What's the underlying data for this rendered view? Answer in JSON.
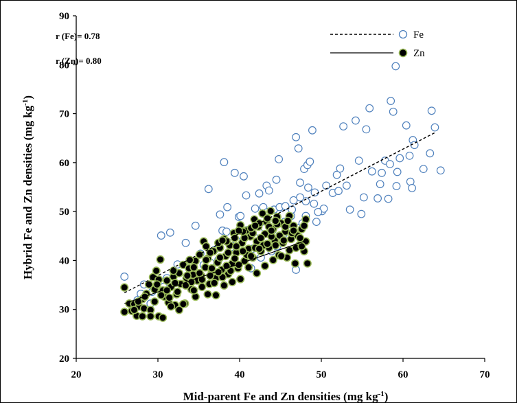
{
  "chart_data": {
    "type": "scatter",
    "xlabel": "Mid-parent Fe and Zn densities (mg kg",
    "xlabel_sup": "-1",
    "xlabel_end": ")",
    "ylabel": "Hybrid Fe and Zn densities (mg kg",
    "ylabel_sup": "-1",
    "ylabel_end": ")",
    "xlim": [
      20,
      70
    ],
    "ylim": [
      20,
      90
    ],
    "xticks": [
      20,
      30,
      40,
      50,
      60,
      70
    ],
    "yticks": [
      20,
      30,
      40,
      50,
      60,
      70,
      80,
      90
    ],
    "grid": false,
    "legend_position": "top-right",
    "annotations": [
      "r (Fe)= 0.78",
      "r (Zn)= 0.80"
    ],
    "colors": {
      "fe_marker_edge": "#4f81bd",
      "zn_marker_fill": "#000000",
      "zn_marker_edge": "#9bbb59"
    },
    "series": [
      {
        "name": "Fe",
        "marker": "open-circle",
        "trendline": {
          "style": "dashed",
          "x": [
            25.9,
            64.0
          ],
          "y": [
            33.4,
            66.2
          ]
        },
        "points": [
          [
            25.9,
            36.7
          ],
          [
            27.5,
            31.9
          ],
          [
            29.1,
            31.2
          ],
          [
            30.4,
            45.1
          ],
          [
            31.5,
            45.7
          ],
          [
            32.4,
            39.2
          ],
          [
            33.4,
            43.6
          ],
          [
            34.6,
            47.1
          ],
          [
            35.2,
            41.4
          ],
          [
            36.2,
            54.6
          ],
          [
            37.6,
            49.4
          ],
          [
            38.1,
            60.1
          ],
          [
            38.5,
            50.9
          ],
          [
            39.4,
            57.9
          ],
          [
            39.9,
            48.9
          ],
          [
            40.5,
            57.2
          ],
          [
            40.8,
            53.3
          ],
          [
            41.9,
            50.6
          ],
          [
            42.4,
            53.7
          ],
          [
            42.9,
            50.9
          ],
          [
            43.3,
            55.3
          ],
          [
            43.6,
            54.3
          ],
          [
            44.2,
            50.4
          ],
          [
            44.5,
            56.5
          ],
          [
            44.8,
            60.7
          ],
          [
            45.2,
            50.8
          ],
          [
            45.5,
            47.9
          ],
          [
            46.3,
            49.1
          ],
          [
            46.6,
            52.3
          ],
          [
            46.9,
            65.2
          ],
          [
            47.2,
            62.9
          ],
          [
            47.4,
            55.9
          ],
          [
            47.9,
            58.7
          ],
          [
            48.3,
            59.5
          ],
          [
            48.6,
            60.2
          ],
          [
            48.9,
            66.6
          ],
          [
            49.2,
            53.9
          ],
          [
            49.4,
            47.9
          ],
          [
            50.1,
            50.1
          ],
          [
            50.6,
            55.3
          ],
          [
            51.4,
            53.8
          ],
          [
            51.9,
            57.5
          ],
          [
            52.3,
            58.8
          ],
          [
            52.7,
            67.4
          ],
          [
            53.5,
            50.4
          ],
          [
            54.2,
            68.6
          ],
          [
            54.6,
            60.4
          ],
          [
            55.2,
            52.9
          ],
          [
            55.5,
            66.8
          ],
          [
            55.9,
            71.1
          ],
          [
            56.2,
            58.2
          ],
          [
            56.9,
            52.7
          ],
          [
            57.4,
            57.9
          ],
          [
            57.8,
            60.4
          ],
          [
            58.2,
            52.6
          ],
          [
            58.5,
            72.6
          ],
          [
            58.8,
            70.4
          ],
          [
            59.1,
            79.7
          ],
          [
            59.3,
            58.1
          ],
          [
            59.6,
            60.9
          ],
          [
            60.4,
            67.6
          ],
          [
            60.9,
            56.1
          ],
          [
            61.2,
            64.6
          ],
          [
            61.4,
            63.6
          ],
          [
            61.1,
            54.8
          ],
          [
            62.5,
            58.7
          ],
          [
            63.3,
            61.9
          ],
          [
            63.5,
            70.6
          ],
          [
            63.9,
            67.2
          ],
          [
            64.6,
            58.4
          ],
          [
            46.9,
            38.1
          ],
          [
            47.7,
            47.6
          ],
          [
            48.1,
            52.1
          ],
          [
            52.1,
            54.2
          ],
          [
            53.1,
            55.3
          ],
          [
            54.9,
            49.5
          ],
          [
            57.2,
            55.6
          ],
          [
            59.2,
            55.2
          ],
          [
            58.4,
            59.7
          ],
          [
            60.8,
            61.4
          ],
          [
            39.1,
            43.6
          ],
          [
            39.6,
            44.1
          ],
          [
            40.9,
            46.2
          ],
          [
            41.4,
            38.4
          ],
          [
            42.1,
            44.5
          ],
          [
            43.1,
            46.6
          ],
          [
            43.9,
            41.9
          ],
          [
            44.1,
            45.2
          ],
          [
            45.1,
            43.7
          ],
          [
            45.9,
            46.1
          ],
          [
            36.4,
            39.6
          ],
          [
            36.9,
            42.1
          ],
          [
            37.4,
            40.1
          ],
          [
            38.9,
            42.7
          ],
          [
            33.9,
            38.9
          ],
          [
            35.6,
            39.1
          ],
          [
            34.1,
            37.2
          ],
          [
            31.1,
            36.4
          ],
          [
            30.7,
            34.6
          ],
          [
            29.3,
            33.6
          ],
          [
            28.3,
            35.1
          ],
          [
            27.9,
            33.2
          ],
          [
            41.6,
            42.4
          ],
          [
            42.6,
            40.6
          ],
          [
            44.6,
            42.9
          ],
          [
            46.1,
            44.6
          ],
          [
            47.1,
            46.6
          ],
          [
            48.1,
            49.1
          ],
          [
            49.1,
            51.6
          ],
          [
            50.3,
            50.6
          ],
          [
            37.9,
            46.1
          ],
          [
            38.4,
            45.9
          ],
          [
            40.1,
            49.1
          ],
          [
            43.4,
            49.9
          ],
          [
            44.9,
            50.9
          ],
          [
            45.6,
            51.1
          ],
          [
            46.4,
            50.4
          ],
          [
            47.4,
            52.9
          ],
          [
            48.4,
            54.9
          ],
          [
            49.6,
            49.9
          ]
        ]
      },
      {
        "name": "Zn",
        "marker": "filled-circle",
        "trendline": {
          "style": "solid",
          "x": [
            25.9,
            48.4
          ],
          "y": [
            31.2,
            44.2
          ]
        },
        "points": [
          [
            25.9,
            34.5
          ],
          [
            25.9,
            29.5
          ],
          [
            26.5,
            31.2
          ],
          [
            26.8,
            29.7
          ],
          [
            27.1,
            31.1
          ],
          [
            27.4,
            28.7
          ],
          [
            27.7,
            30.6
          ],
          [
            28.1,
            32.1
          ],
          [
            28.3,
            30.2
          ],
          [
            28.6,
            33.2
          ],
          [
            28.9,
            35.1
          ],
          [
            29.1,
            29.9
          ],
          [
            29.4,
            36.6
          ],
          [
            29.6,
            34.1
          ],
          [
            29.8,
            37.9
          ],
          [
            30.1,
            28.6
          ],
          [
            30.3,
            40.2
          ],
          [
            30.6,
            33.9
          ],
          [
            30.8,
            32.6
          ],
          [
            31.1,
            35.9
          ],
          [
            31.3,
            31.4
          ],
          [
            31.6,
            34.6
          ],
          [
            31.9,
            36.7
          ],
          [
            32.1,
            30.9
          ],
          [
            32.3,
            33.1
          ],
          [
            32.6,
            37.4
          ],
          [
            32.8,
            35.2
          ],
          [
            33.1,
            39.1
          ],
          [
            33.3,
            31.2
          ],
          [
            33.5,
            36.4
          ],
          [
            33.8,
            38.4
          ],
          [
            34.1,
            34.1
          ],
          [
            34.3,
            37.1
          ],
          [
            34.6,
            39.9
          ],
          [
            34.8,
            35.9
          ],
          [
            35.1,
            41.2
          ],
          [
            35.3,
            36.9
          ],
          [
            35.6,
            43.9
          ],
          [
            35.8,
            38.6
          ],
          [
            36.1,
            40.4
          ],
          [
            36.3,
            35.2
          ],
          [
            36.6,
            37.9
          ],
          [
            36.8,
            41.9
          ],
          [
            37.1,
            36.4
          ],
          [
            37.3,
            39.6
          ],
          [
            37.6,
            42.6
          ],
          [
            37.8,
            38.1
          ],
          [
            38.1,
            44.4
          ],
          [
            38.3,
            40.9
          ],
          [
            38.6,
            37.2
          ],
          [
            38.8,
            43.1
          ],
          [
            39.1,
            39.4
          ],
          [
            39.3,
            45.6
          ],
          [
            39.6,
            41.6
          ],
          [
            39.8,
            38.4
          ],
          [
            40.1,
            47.2
          ],
          [
            40.3,
            43.6
          ],
          [
            40.6,
            39.9
          ],
          [
            40.8,
            46.1
          ],
          [
            41.1,
            42.4
          ],
          [
            41.3,
            44.9
          ],
          [
            41.6,
            40.6
          ],
          [
            41.8,
            48.4
          ],
          [
            42.1,
            43.9
          ],
          [
            42.3,
            46.9
          ],
          [
            42.6,
            41.9
          ],
          [
            42.8,
            49.6
          ],
          [
            43.1,
            45.4
          ],
          [
            43.3,
            47.9
          ],
          [
            43.6,
            42.6
          ],
          [
            43.8,
            50.1
          ],
          [
            44.1,
            46.4
          ],
          [
            44.3,
            44.1
          ],
          [
            44.6,
            48.9
          ],
          [
            44.8,
            41.1
          ],
          [
            45.1,
            47.6
          ],
          [
            45.3,
            43.6
          ],
          [
            45.6,
            45.9
          ],
          [
            45.8,
            40.6
          ],
          [
            46.1,
            49.1
          ],
          [
            46.3,
            44.4
          ],
          [
            46.6,
            47.1
          ],
          [
            46.8,
            39.4
          ],
          [
            47.1,
            45.1
          ],
          [
            47.3,
            43.1
          ],
          [
            47.6,
            46.4
          ],
          [
            47.9,
            41.9
          ],
          [
            48.1,
            43.9
          ],
          [
            48.3,
            39.4
          ],
          [
            48.1,
            48.4
          ],
          [
            28.1,
            28.6
          ],
          [
            29.1,
            28.6
          ],
          [
            30.6,
            28.3
          ],
          [
            31.6,
            30.6
          ],
          [
            32.6,
            29.9
          ],
          [
            33.1,
            31.1
          ],
          [
            34.6,
            32.6
          ],
          [
            36.1,
            33.1
          ],
          [
            37.1,
            32.9
          ],
          [
            38.1,
            34.9
          ],
          [
            39.1,
            35.6
          ],
          [
            40.1,
            36.2
          ],
          [
            41.1,
            38.6
          ],
          [
            42.1,
            37.4
          ],
          [
            43.1,
            38.9
          ],
          [
            44.1,
            40.1
          ],
          [
            45.1,
            40.9
          ],
          [
            46.1,
            42.1
          ],
          [
            46.9,
            42.6
          ],
          [
            47.6,
            42.9
          ],
          [
            30.1,
            36.1
          ],
          [
            31.1,
            33.9
          ],
          [
            32.1,
            35.4
          ],
          [
            33.6,
            36.9
          ],
          [
            34.1,
            35.6
          ],
          [
            35.1,
            37.4
          ],
          [
            36.6,
            38.4
          ],
          [
            37.6,
            40.6
          ],
          [
            38.6,
            41.6
          ],
          [
            39.6,
            42.9
          ],
          [
            40.6,
            44.6
          ],
          [
            41.6,
            45.6
          ],
          [
            42.6,
            44.6
          ],
          [
            43.6,
            46.9
          ],
          [
            44.6,
            47.4
          ],
          [
            45.6,
            46.9
          ],
          [
            35.4,
            34.6
          ],
          [
            36.9,
            35.4
          ],
          [
            37.9,
            36.6
          ],
          [
            38.9,
            37.9
          ],
          [
            39.9,
            39.1
          ],
          [
            40.9,
            41.1
          ],
          [
            41.9,
            42.6
          ],
          [
            42.9,
            43.1
          ],
          [
            43.9,
            44.9
          ],
          [
            44.9,
            45.1
          ],
          [
            34.4,
            38.6
          ],
          [
            35.9,
            40.1
          ],
          [
            36.4,
            41.6
          ],
          [
            37.4,
            43.6
          ],
          [
            38.4,
            43.9
          ],
          [
            39.4,
            44.6
          ],
          [
            40.4,
            45.9
          ],
          [
            41.4,
            46.6
          ],
          [
            42.4,
            47.6
          ],
          [
            43.4,
            48.6
          ],
          [
            44.4,
            48.1
          ],
          [
            27.1,
            29.9
          ],
          [
            27.6,
            31.6
          ],
          [
            28.4,
            32.6
          ],
          [
            29.6,
            31.6
          ],
          [
            30.4,
            32.9
          ],
          [
            31.4,
            32.4
          ],
          [
            32.4,
            33.6
          ],
          [
            33.4,
            34.9
          ],
          [
            34.4,
            33.9
          ],
          [
            35.4,
            36.1
          ],
          [
            36.4,
            36.9
          ],
          [
            37.4,
            37.6
          ],
          [
            38.4,
            38.9
          ],
          [
            39.4,
            40.4
          ],
          [
            40.4,
            41.9
          ],
          [
            41.4,
            40.9
          ],
          [
            42.4,
            42.4
          ],
          [
            43.4,
            43.4
          ],
          [
            44.4,
            43.1
          ],
          [
            45.4,
            44.1
          ],
          [
            46.4,
            45.6
          ],
          [
            47.4,
            44.6
          ],
          [
            29.9,
            35.1
          ],
          [
            31.9,
            37.9
          ],
          [
            33.9,
            40.1
          ],
          [
            35.9,
            42.9
          ],
          [
            37.9,
            44.1
          ],
          [
            39.9,
            46.1
          ],
          [
            41.9,
            47.1
          ],
          [
            43.9,
            46.1
          ],
          [
            45.9,
            48.1
          ],
          [
            46.6,
            46.1
          ],
          [
            47.9,
            47.1
          ]
        ]
      }
    ]
  }
}
